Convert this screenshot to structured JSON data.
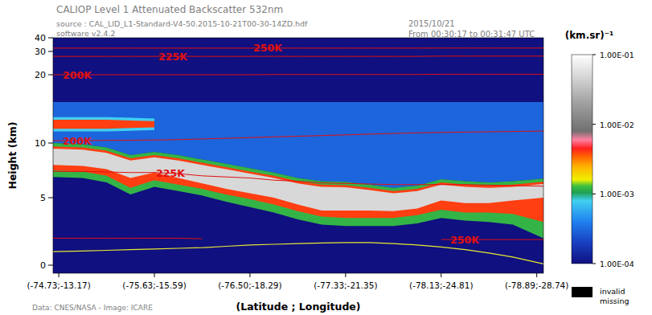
{
  "chart_data": {
    "type": "heatmap",
    "title": "CALIOP Level 1 Attenuated Backscatter 532nm",
    "annotations": [
      "source : CAL_LID_L1-Standard-V4-50.2015-10-21T00-30-14ZD.hdf",
      "software v2.4.2",
      "2015/10/21",
      "From 00:30:17 to 00:31:47 UTC",
      "Data: CNES/NASA - Image: ICARE"
    ],
    "x_label": "(Latitude ; Longitude)",
    "y_label": "Height (km)",
    "xlim": [
      -0.06,
      5.07
    ],
    "xticks": [
      {
        "value": 0,
        "label": "(-74.73;-13.17)"
      },
      {
        "value": 1,
        "label": "(-75.63;-15.59)"
      },
      {
        "value": 2,
        "label": "(-76.50;-18.29)"
      },
      {
        "value": 3,
        "label": "(-77.33;-21.35)"
      },
      {
        "value": 4,
        "label": "(-78.13;-24.81)"
      },
      {
        "value": 5,
        "label": "(-78.89;-28.74)"
      }
    ],
    "ylim": [
      -0.6,
      40
    ],
    "yticks": [
      0,
      5,
      10,
      20,
      30,
      40
    ],
    "x": [
      -0.06,
      0.25,
      0.5,
      0.75,
      1,
      1.25,
      1.5,
      1.75,
      2,
      2.25,
      2.5,
      2.75,
      3,
      3.25,
      3.5,
      3.75,
      4,
      4.25,
      4.5,
      4.75,
      5.07
    ],
    "background": 0.0001,
    "layers": [
      {
        "value": 0.0003,
        "top": [
          16,
          16,
          16,
          16,
          16,
          16,
          16,
          16,
          16,
          16,
          16,
          16,
          16,
          16,
          16,
          16,
          16,
          16,
          16,
          16,
          16
        ],
        "base": [
          9.99,
          9.9,
          9.6,
          8.9,
          9.2,
          8.9,
          8.5,
          8.1,
          7.7,
          7.3,
          6.8,
          6.5,
          6.45,
          6.2,
          5.9,
          6.1,
          6.7,
          6.5,
          6.4,
          6.5,
          6.75
        ]
      },
      {
        "value": 0.0012,
        "top": [
          9.99,
          9.9,
          9.6,
          8.9,
          9.2,
          8.9,
          8.5,
          8.1,
          7.7,
          7.3,
          6.8,
          6.5,
          6.45,
          6.2,
          5.9,
          6.1,
          6.7,
          6.5,
          6.4,
          6.5,
          6.75
        ],
        "base": [
          6.9,
          6.8,
          6.4,
          5.3,
          6.0,
          5.6,
          5.2,
          4.7,
          4.3,
          3.9,
          3.4,
          3.0,
          2.9,
          2.9,
          2.9,
          3.1,
          3.5,
          3.3,
          3.2,
          3.0,
          2.0
        ]
      },
      {
        "value": 0.004,
        "top": [
          9.69,
          9.6,
          9.3,
          8.6,
          8.9,
          8.6,
          8.2,
          7.8,
          7.4,
          7.0,
          6.5,
          6.2,
          6.15,
          5.9,
          5.6,
          5.8,
          6.4,
          6.2,
          6.1,
          6.2,
          6.45
        ],
        "base": [
          7.5,
          7.4,
          7.0,
          5.9,
          6.6,
          6.2,
          5.8,
          5.3,
          4.9,
          4.5,
          4.0,
          3.6,
          3.5,
          3.5,
          3.5,
          3.7,
          4.1,
          3.9,
          3.9,
          3.8,
          3.2
        ]
      },
      {
        "value": 0.05,
        "top": [
          9.49,
          9.4,
          9.1,
          8.4,
          8.7,
          8.4,
          8.0,
          7.6,
          7.2,
          6.8,
          6.3,
          6.0,
          5.95,
          5.7,
          5.4,
          5.6,
          6.2,
          6.0,
          5.9,
          6.0,
          6.25
        ],
        "base": [
          8.0,
          7.9,
          7.6,
          6.8,
          7.3,
          6.8,
          6.3,
          5.8,
          5.4,
          5.0,
          4.5,
          4.05,
          4.05,
          4.05,
          4.0,
          4.2,
          4.8,
          4.6,
          4.6,
          4.8,
          5.0
        ]
      },
      {
        "value": 0.0008,
        "top": [
          13.8,
          13.8,
          13.8,
          13.7,
          13.6,
          null,
          null,
          null,
          null,
          null,
          null,
          null,
          null,
          null,
          null,
          null,
          null,
          null,
          null,
          null,
          null
        ],
        "base": [
          11.7,
          11.7,
          11.7,
          11.8,
          11.9,
          null,
          null,
          null,
          null,
          null,
          null,
          null,
          null,
          null,
          null,
          null,
          null,
          null,
          null,
          null,
          null
        ]
      },
      {
        "value": 0.004,
        "top": [
          13.4,
          13.4,
          13.4,
          13.3,
          13.2,
          null,
          null,
          null,
          null,
          null,
          null,
          null,
          null,
          null,
          null,
          null,
          null,
          null,
          null,
          null,
          null
        ],
        "base": [
          12.1,
          12.1,
          12.1,
          12.2,
          12.3,
          null,
          null,
          null,
          null,
          null,
          null,
          null,
          null,
          null,
          null,
          null,
          null,
          null,
          null,
          null,
          null
        ]
      }
    ],
    "isotherms": [
      {
        "name": "250K",
        "color": "#e01010",
        "values": [
          32.4,
          32.4,
          32.4,
          32.4,
          32.4,
          32.4,
          32.4,
          32.4,
          32.4,
          32.4,
          32.4,
          32.4,
          32.4,
          32.4,
          32.4,
          32.4,
          32.5,
          32.5,
          32.5,
          32.5,
          32.5
        ]
      },
      {
        "name": "225K",
        "color": "#e01010",
        "values": [
          27.9,
          27.9,
          27.9,
          27.9,
          27.9,
          27.9,
          27.9,
          27.9,
          27.9,
          27.9,
          27.9,
          27.9,
          27.9,
          27.9,
          27.9,
          27.9,
          28.0,
          28.0,
          28.0,
          28.0,
          28.0
        ]
      },
      {
        "name": "200K",
        "color": "#e01010",
        "values": [
          20.0,
          20.0,
          20.0,
          20.0,
          20.0,
          20.0,
          20.0,
          20.0,
          20.0,
          20.1,
          20.1,
          20.1,
          20.1,
          20.1,
          20.1,
          20.1,
          20.2,
          20.2,
          20.2,
          20.2,
          20.2
        ]
      },
      {
        "name": "200K",
        "color": "#e01010",
        "values": [
          10.35,
          10.35,
          10.4,
          10.4,
          10.45,
          10.5,
          10.6,
          10.7,
          10.8,
          10.9,
          11.0,
          11.1,
          11.2,
          11.3,
          11.4,
          11.5,
          11.55,
          11.6,
          11.65,
          11.7,
          11.75
        ]
      },
      {
        "name": "225K",
        "color": "#e01010",
        "values": [
          7.4,
          7.4,
          7.35,
          7.3,
          7.3,
          7.2,
          7.0,
          6.9,
          6.8,
          6.6,
          6.5,
          6.35,
          6.3,
          6.25,
          6.2,
          6.2,
          6.2,
          6.2,
          6.15,
          6.1,
          6.05
        ]
      },
      {
        "name": "250K",
        "color": "#e01010",
        "values": [
          2.0,
          2.0,
          2.0,
          2.0,
          2.0,
          2.0,
          1.95,
          null,
          null,
          null,
          null,
          null,
          null,
          null,
          null,
          null,
          1.9,
          1.9,
          1.9,
          1.9,
          1.9
        ]
      }
    ],
    "surface": {
      "color": "#e8e830",
      "values": [
        1.0,
        1.05,
        1.1,
        1.15,
        1.2,
        1.25,
        1.3,
        1.4,
        1.5,
        1.55,
        1.6,
        1.65,
        1.67,
        1.67,
        1.6,
        1.5,
        1.35,
        1.15,
        0.9,
        0.6,
        0.1
      ]
    },
    "colorbar": {
      "label": "(km.sr)⁻¹",
      "log": true,
      "range": [
        0.0001,
        0.1
      ],
      "ticks": [
        {
          "value": 0.1,
          "label": "1.00E-01"
        },
        {
          "value": 0.01,
          "label": "1.00E-02"
        },
        {
          "value": 0.001,
          "label": "1.00E-03"
        },
        {
          "value": 0.0001,
          "label": "1.00E-04"
        }
      ],
      "stops": [
        {
          "value": 0.0001,
          "color": "#101080"
        },
        {
          "value": 0.0002,
          "color": "#1840c0"
        },
        {
          "value": 0.0004,
          "color": "#2080f0"
        },
        {
          "value": 0.0008,
          "color": "#40d0f0"
        },
        {
          "value": 0.00105,
          "color": "#20a050"
        },
        {
          "value": 0.0013,
          "color": "#40c040"
        },
        {
          "value": 0.0016,
          "color": "#f0f000"
        },
        {
          "value": 0.0025,
          "color": "#ffb000"
        },
        {
          "value": 0.0035,
          "color": "#ff6000"
        },
        {
          "value": 0.0045,
          "color": "#ff2020"
        },
        {
          "value": 0.006,
          "color": "#ff80a0"
        },
        {
          "value": 0.008,
          "color": "#707070"
        },
        {
          "value": 0.02,
          "color": "#a0a0a0"
        },
        {
          "value": 0.05,
          "color": "#d8d8d8"
        },
        {
          "value": 0.1,
          "color": "#ffffff"
        }
      ]
    },
    "missing": {
      "color": "#000000",
      "labels": [
        "invalid",
        "missing"
      ]
    }
  }
}
